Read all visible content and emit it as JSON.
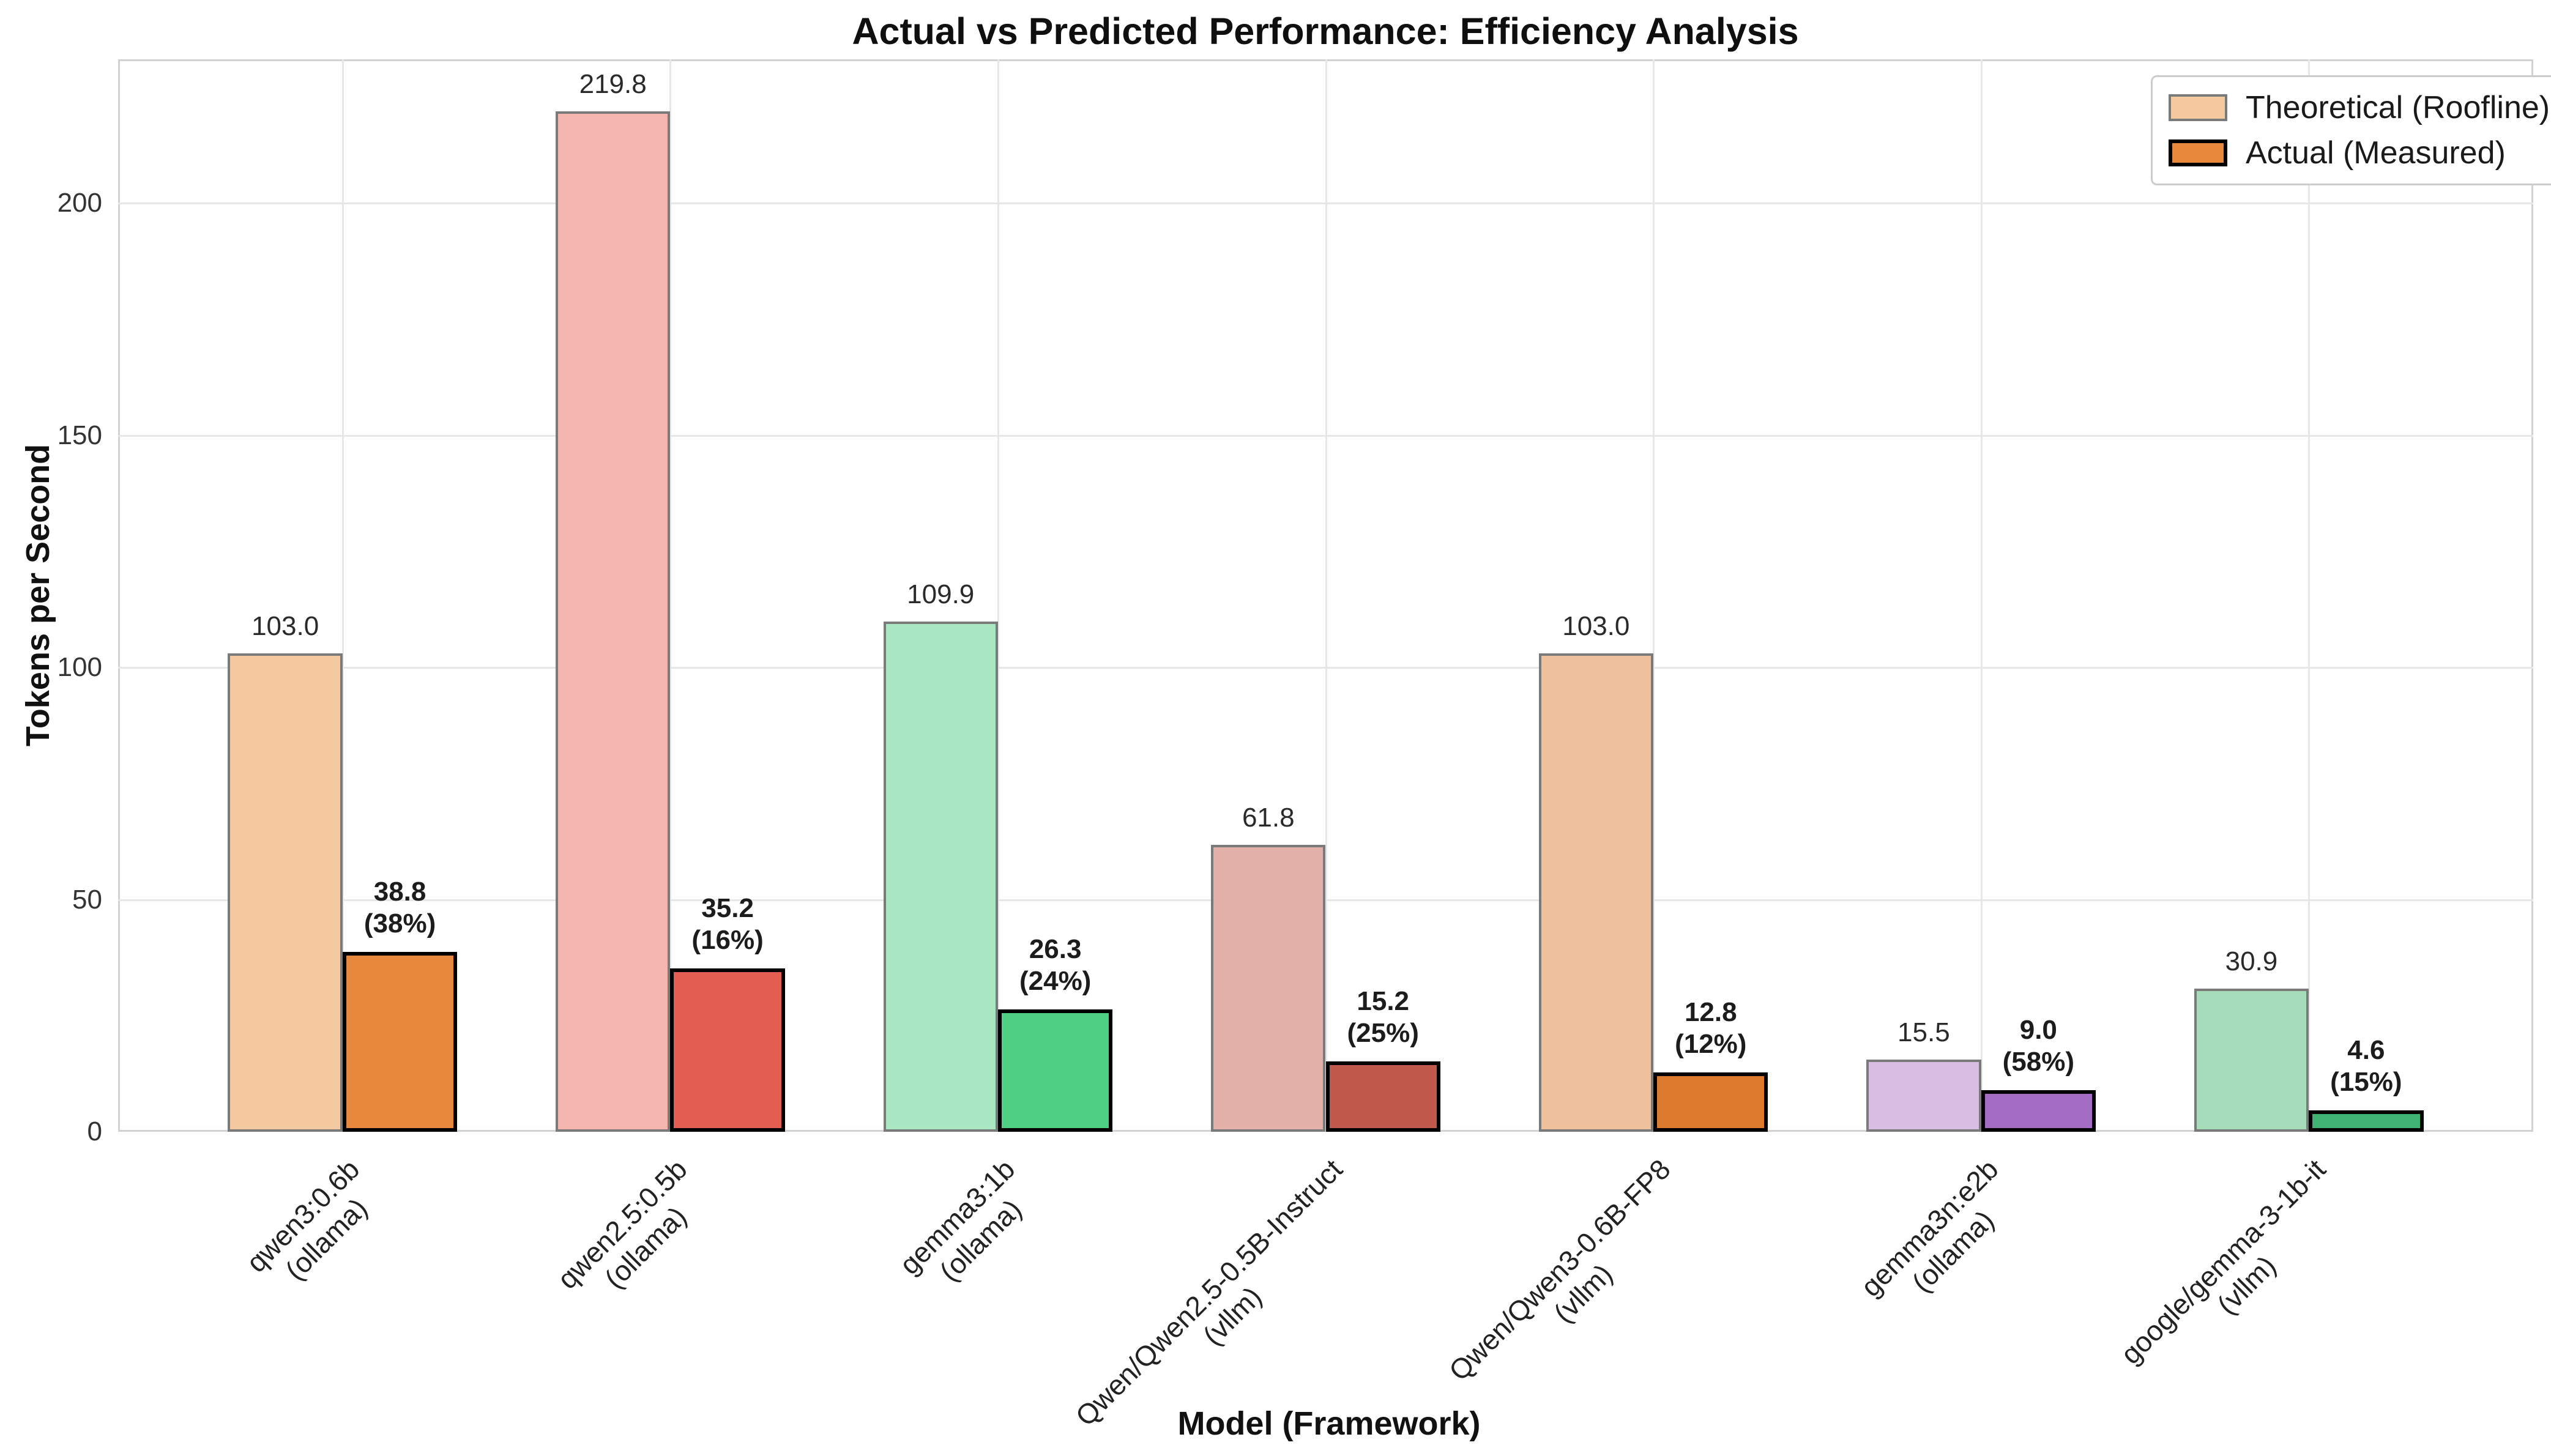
{
  "title": "Actual vs Predicted Performance: Efficiency Analysis",
  "chart_data": {
    "type": "bar",
    "title": "Actual vs Predicted Performance: Efficiency Analysis",
    "xlabel": "Model (Framework)",
    "ylabel": "Tokens per Second",
    "ylim": [
      0,
      231
    ],
    "yticks": [
      "0",
      "50",
      "100",
      "150",
      "200"
    ],
    "ytick_values": [
      0,
      50,
      100,
      150,
      200
    ],
    "grid": "on",
    "legend": {
      "position": "upper right",
      "entries": [
        {
          "label": "Theoretical (Roofline)",
          "fill": "#f5c9a0",
          "edge": "#7a7a7a"
        },
        {
          "label": "Actual (Measured)",
          "fill": "#e8883d",
          "edge": "#000000"
        }
      ]
    },
    "series": [
      {
        "name": "Theoretical (Roofline)",
        "values": [
          103.0,
          219.8,
          109.9,
          61.8,
          103.0,
          15.5,
          30.9
        ]
      },
      {
        "name": "Actual (Measured)",
        "values": [
          38.8,
          35.2,
          26.3,
          15.2,
          12.8,
          9.0,
          4.6
        ]
      }
    ],
    "groups": [
      {
        "model": "qwen3:0.6b",
        "framework_label": "(ollama)",
        "theoretical": 103.0,
        "actual": 38.8,
        "theoretical_label": "103.0",
        "actual_value_label": "38.8",
        "actual_pct_label": "(38%)",
        "color_light": "#f5c9a0",
        "color_solid": "#e8883d"
      },
      {
        "model": "qwen2.5:0.5b",
        "framework_label": "(ollama)",
        "theoretical": 219.8,
        "actual": 35.2,
        "theoretical_label": "219.8",
        "actual_value_label": "35.2",
        "actual_pct_label": "(16%)",
        "color_light": "#f5b5af",
        "color_solid": "#e25e51"
      },
      {
        "model": "gemma3:1b",
        "framework_label": "(ollama)",
        "theoretical": 109.9,
        "actual": 26.3,
        "theoretical_label": "109.9",
        "actual_value_label": "26.3",
        "actual_pct_label": "(24%)",
        "color_light": "#a9e7c3",
        "color_solid": "#4fcf81"
      },
      {
        "model": "Qwen/Qwen2.5-0.5B-Instruct",
        "framework_label": "(vllm)",
        "theoretical": 61.8,
        "actual": 15.2,
        "theoretical_label": "61.8",
        "actual_value_label": "15.2",
        "actual_pct_label": "(25%)",
        "color_light": "#e3b0a9",
        "color_solid": "#c05a4d"
      },
      {
        "model": "Qwen/Qwen3-0.6B-FP8",
        "framework_label": "(vllm)",
        "theoretical": 103.0,
        "actual": 12.8,
        "theoretical_label": "103.0",
        "actual_value_label": "12.8",
        "actual_pct_label": "(12%)",
        "color_light": "#efc09c",
        "color_solid": "#dc7b2e"
      },
      {
        "model": "gemma3n:e2b",
        "framework_label": "(ollama)",
        "theoretical": 15.5,
        "actual": 9.0,
        "theoretical_label": "15.5",
        "actual_value_label": "9.0",
        "actual_pct_label": "(58%)",
        "color_light": "#d8bee3",
        "color_solid": "#a56cc3"
      },
      {
        "model": "google/gemma-3-1b-it",
        "framework_label": "(vllm)",
        "theoretical": 30.9,
        "actual": 4.6,
        "theoretical_label": "30.9",
        "actual_value_label": "4.6",
        "actual_pct_label": "(15%)",
        "color_light": "#a7dcbb",
        "color_solid": "#3fb274"
      }
    ],
    "colors": {
      "theoretical_edge": "#7a7a7a",
      "actual_edge": "#000000",
      "grid": "#e7e7e7",
      "spine": "#d2d2d2"
    }
  }
}
